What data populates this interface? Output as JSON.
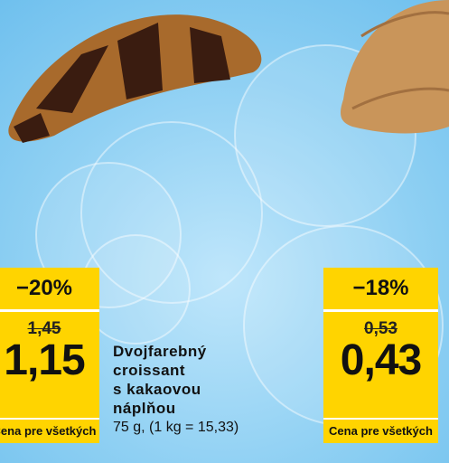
{
  "left_tag": {
    "discount": "−20%",
    "old_price": "1,45",
    "new_price": "1,15",
    "label": "Cena pre všetkých"
  },
  "product": {
    "name_lines": [
      "Dvojfarebný",
      "croissant",
      "s kakaovou",
      "náplňou"
    ],
    "weight": "75 g, (1 kg = 15,33)"
  },
  "right_tag": {
    "discount": "−18%",
    "old_price": "0,53",
    "new_price": "0,43",
    "label": "Cena pre všetkých"
  }
}
